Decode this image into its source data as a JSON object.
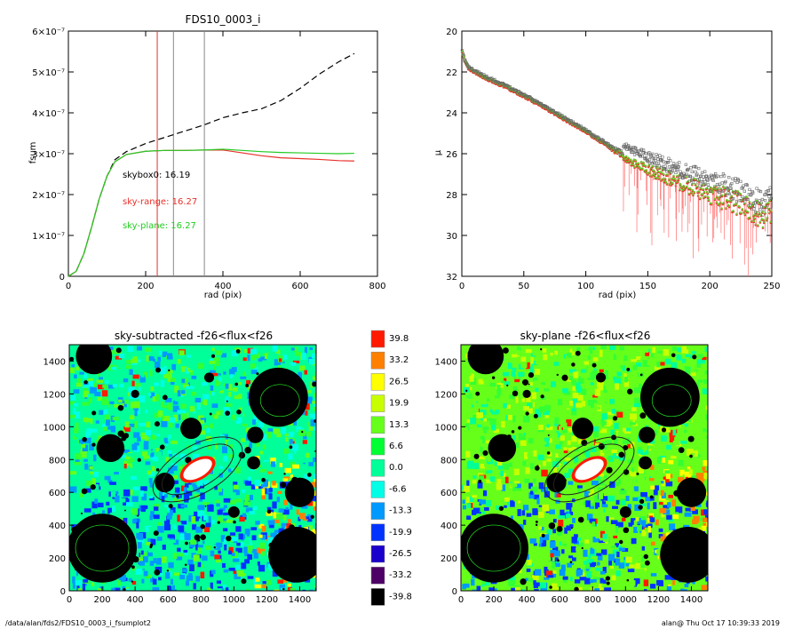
{
  "footer": {
    "path": "/data/alan/fds2/FDS10_0003_i_fsumplot2",
    "stamp": "alan@  Thu Oct 17 10:39:33 2019"
  },
  "chart_data": [
    {
      "type": "line",
      "title": "FDS10_0003_i",
      "xlabel": "rad (pix)",
      "ylabel": "fsum",
      "xlim": [
        0,
        800
      ],
      "ylim": [
        0,
        6e-07
      ],
      "xticks": [
        "0",
        "200",
        "400",
        "600",
        "800"
      ],
      "yticks": [
        "0",
        "1×10⁻⁷",
        "2×10⁻⁷",
        "3×10⁻⁷",
        "4×10⁻⁷",
        "5×10⁻⁷",
        "6×10⁻⁷"
      ],
      "vlines": [
        {
          "x": 230,
          "color": "#e8302a"
        },
        {
          "x": 272,
          "color": "#888888"
        },
        {
          "x": 352,
          "color": "#888888"
        }
      ],
      "annotations": [
        {
          "text": "skybox0: 16.19",
          "color": "#000000"
        },
        {
          "text": "sky-range: 16.27",
          "color": "#e8302a"
        },
        {
          "text": "sky-plane: 16.27",
          "color": "#22cc22"
        }
      ],
      "series": [
        {
          "color": "#000000",
          "style": "dashed",
          "x": [
            0,
            20,
            40,
            60,
            80,
            100,
            120,
            150,
            200,
            250,
            300,
            350,
            400,
            450,
            500,
            550,
            600,
            650,
            700,
            740
          ],
          "y": [
            0,
            1.2e-08,
            5.5e-08,
            1.2e-07,
            1.9e-07,
            2.45e-07,
            2.85e-07,
            3.05e-07,
            3.25e-07,
            3.4e-07,
            3.55e-07,
            3.7e-07,
            3.88e-07,
            4e-07,
            4.1e-07,
            4.3e-07,
            4.6e-07,
            4.95e-07,
            5.25e-07,
            5.45e-07
          ]
        },
        {
          "color": "#e8302a",
          "style": "solid",
          "x": [
            0,
            20,
            40,
            60,
            80,
            100,
            120,
            150,
            200,
            250,
            300,
            350,
            400,
            450,
            500,
            550,
            600,
            650,
            700,
            740
          ],
          "y": [
            0,
            1.2e-08,
            5.5e-08,
            1.2e-07,
            1.9e-07,
            2.45e-07,
            2.8e-07,
            2.98e-07,
            3.06e-07,
            3.08e-07,
            3.08e-07,
            3.09e-07,
            3.09e-07,
            3.02e-07,
            2.95e-07,
            2.9e-07,
            2.88e-07,
            2.86e-07,
            2.83e-07,
            2.82e-07
          ]
        },
        {
          "color": "#22cc22",
          "style": "solid",
          "x": [
            0,
            20,
            40,
            60,
            80,
            100,
            120,
            150,
            200,
            250,
            300,
            350,
            400,
            450,
            500,
            550,
            600,
            650,
            700,
            740
          ],
          "y": [
            0,
            1.2e-08,
            5.5e-08,
            1.2e-07,
            1.9e-07,
            2.45e-07,
            2.8e-07,
            2.98e-07,
            3.06e-07,
            3.08e-07,
            3.08e-07,
            3.09e-07,
            3.11e-07,
            3.08e-07,
            3.05e-07,
            3.03e-07,
            3.02e-07,
            3.01e-07,
            3e-07,
            3.01e-07
          ]
        }
      ]
    },
    {
      "type": "scatter",
      "title": "",
      "xlabel": "rad (pix)",
      "ylabel": "μ",
      "xlim": [
        0,
        250
      ],
      "ylim": [
        32,
        20
      ],
      "xticks": [
        "0",
        "50",
        "100",
        "150",
        "200",
        "250"
      ],
      "yticks": [
        "20",
        "22",
        "24",
        "26",
        "28",
        "30",
        "32"
      ],
      "profile": {
        "x": [
          0,
          2,
          5,
          10,
          20,
          40,
          60,
          80,
          100,
          120,
          140,
          160,
          180,
          200,
          220,
          240,
          250
        ],
        "y": [
          21.0,
          21.4,
          21.8,
          22.0,
          22.3,
          22.85,
          23.5,
          24.2,
          24.9,
          25.7,
          26.5,
          27.0,
          27.5,
          27.9,
          28.4,
          28.8,
          29.0
        ]
      }
    },
    {
      "type": "heatmap",
      "title": "sky-subtracted -f26<flux<f26",
      "xlim": [
        0,
        1500
      ],
      "ylim": [
        0,
        1500
      ],
      "xticks": [
        "0",
        "200",
        "400",
        "600",
        "800",
        "1000",
        "1200",
        "1400"
      ],
      "yticks": [
        "0",
        "200",
        "400",
        "600",
        "800",
        "1000",
        "1200",
        "1400"
      ]
    },
    {
      "type": "heatmap",
      "title": "sky-plane -f26<flux<f26",
      "xlim": [
        0,
        1500
      ],
      "ylim": [
        0,
        1500
      ],
      "xticks": [
        "0",
        "200",
        "400",
        "600",
        "800",
        "1000",
        "1200",
        "1400"
      ],
      "yticks": [
        "0",
        "200",
        "400",
        "600",
        "800",
        "1000",
        "1200",
        "1400"
      ]
    }
  ],
  "colorbar": {
    "levels": [
      {
        "label": "39.8",
        "color": "#ff1a00"
      },
      {
        "label": "33.2",
        "color": "#ff8000"
      },
      {
        "label": "26.5",
        "color": "#ffff00"
      },
      {
        "label": "19.9",
        "color": "#c8ff00"
      },
      {
        "label": "13.3",
        "color": "#66ff1a"
      },
      {
        "label": "6.6",
        "color": "#00ff33"
      },
      {
        "label": "0.0",
        "color": "#00ff99"
      },
      {
        "label": "-6.6",
        "color": "#00ffe6"
      },
      {
        "label": "-13.3",
        "color": "#0099ff"
      },
      {
        "label": "-19.9",
        "color": "#0033ff"
      },
      {
        "label": "-26.5",
        "color": "#1a00cc"
      },
      {
        "label": "-33.2",
        "color": "#4d0066"
      },
      {
        "label": "-39.8",
        "color": "#000000"
      }
    ]
  }
}
